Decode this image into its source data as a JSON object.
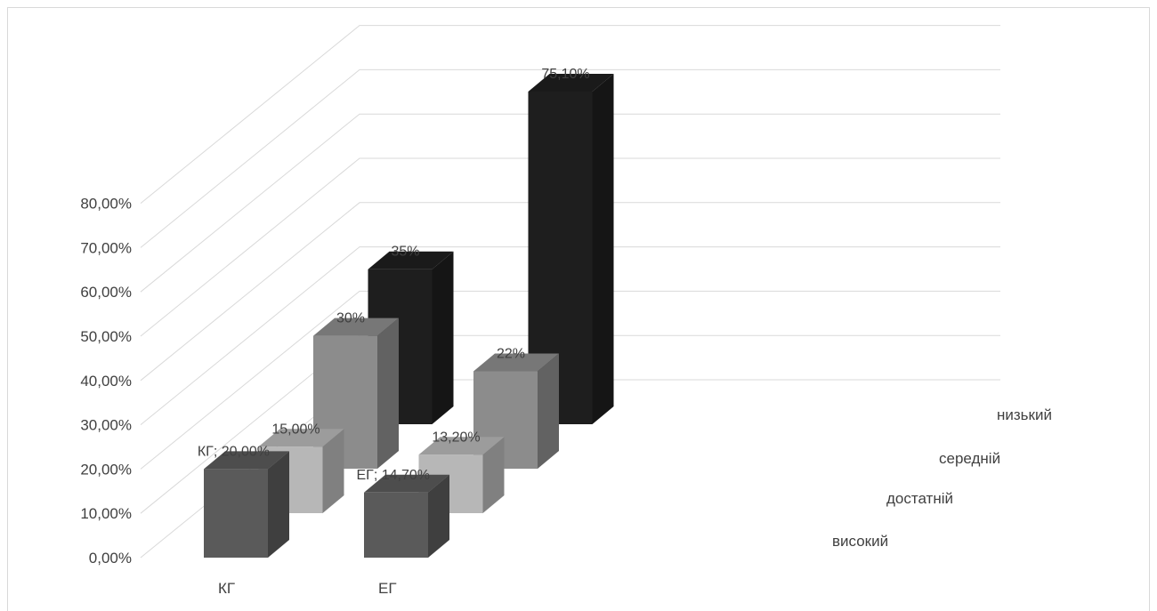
{
  "chart_data": {
    "type": "bar",
    "style": "3d-column",
    "categories": [
      "КГ",
      "ЕГ"
    ],
    "series": [
      {
        "name": "високий",
        "values": [
          20.0,
          14.7
        ],
        "labels": [
          "КГ; 20,00%",
          "ЕГ; 14,70%"
        ],
        "color": "#5a5a5a"
      },
      {
        "name": "достатній",
        "values": [
          15.0,
          13.2
        ],
        "labels": [
          "15,00%",
          "13,20%"
        ],
        "color": "#b7b7b7"
      },
      {
        "name": "середній",
        "values": [
          30.0,
          22.0
        ],
        "labels": [
          "30%",
          "22%"
        ],
        "color": "#8c8c8c"
      },
      {
        "name": "низький",
        "values": [
          35.0,
          75.1
        ],
        "labels": [
          "35%",
          "75,10%"
        ],
        "color": "#1e1e1e"
      }
    ],
    "y_ticks": [
      "0,00%",
      "10,00%",
      "20,00%",
      "30,00%",
      "40,00%",
      "50,00%",
      "60,00%",
      "70,00%",
      "80,00%"
    ],
    "ylim": [
      0,
      80
    ],
    "grid": true
  }
}
